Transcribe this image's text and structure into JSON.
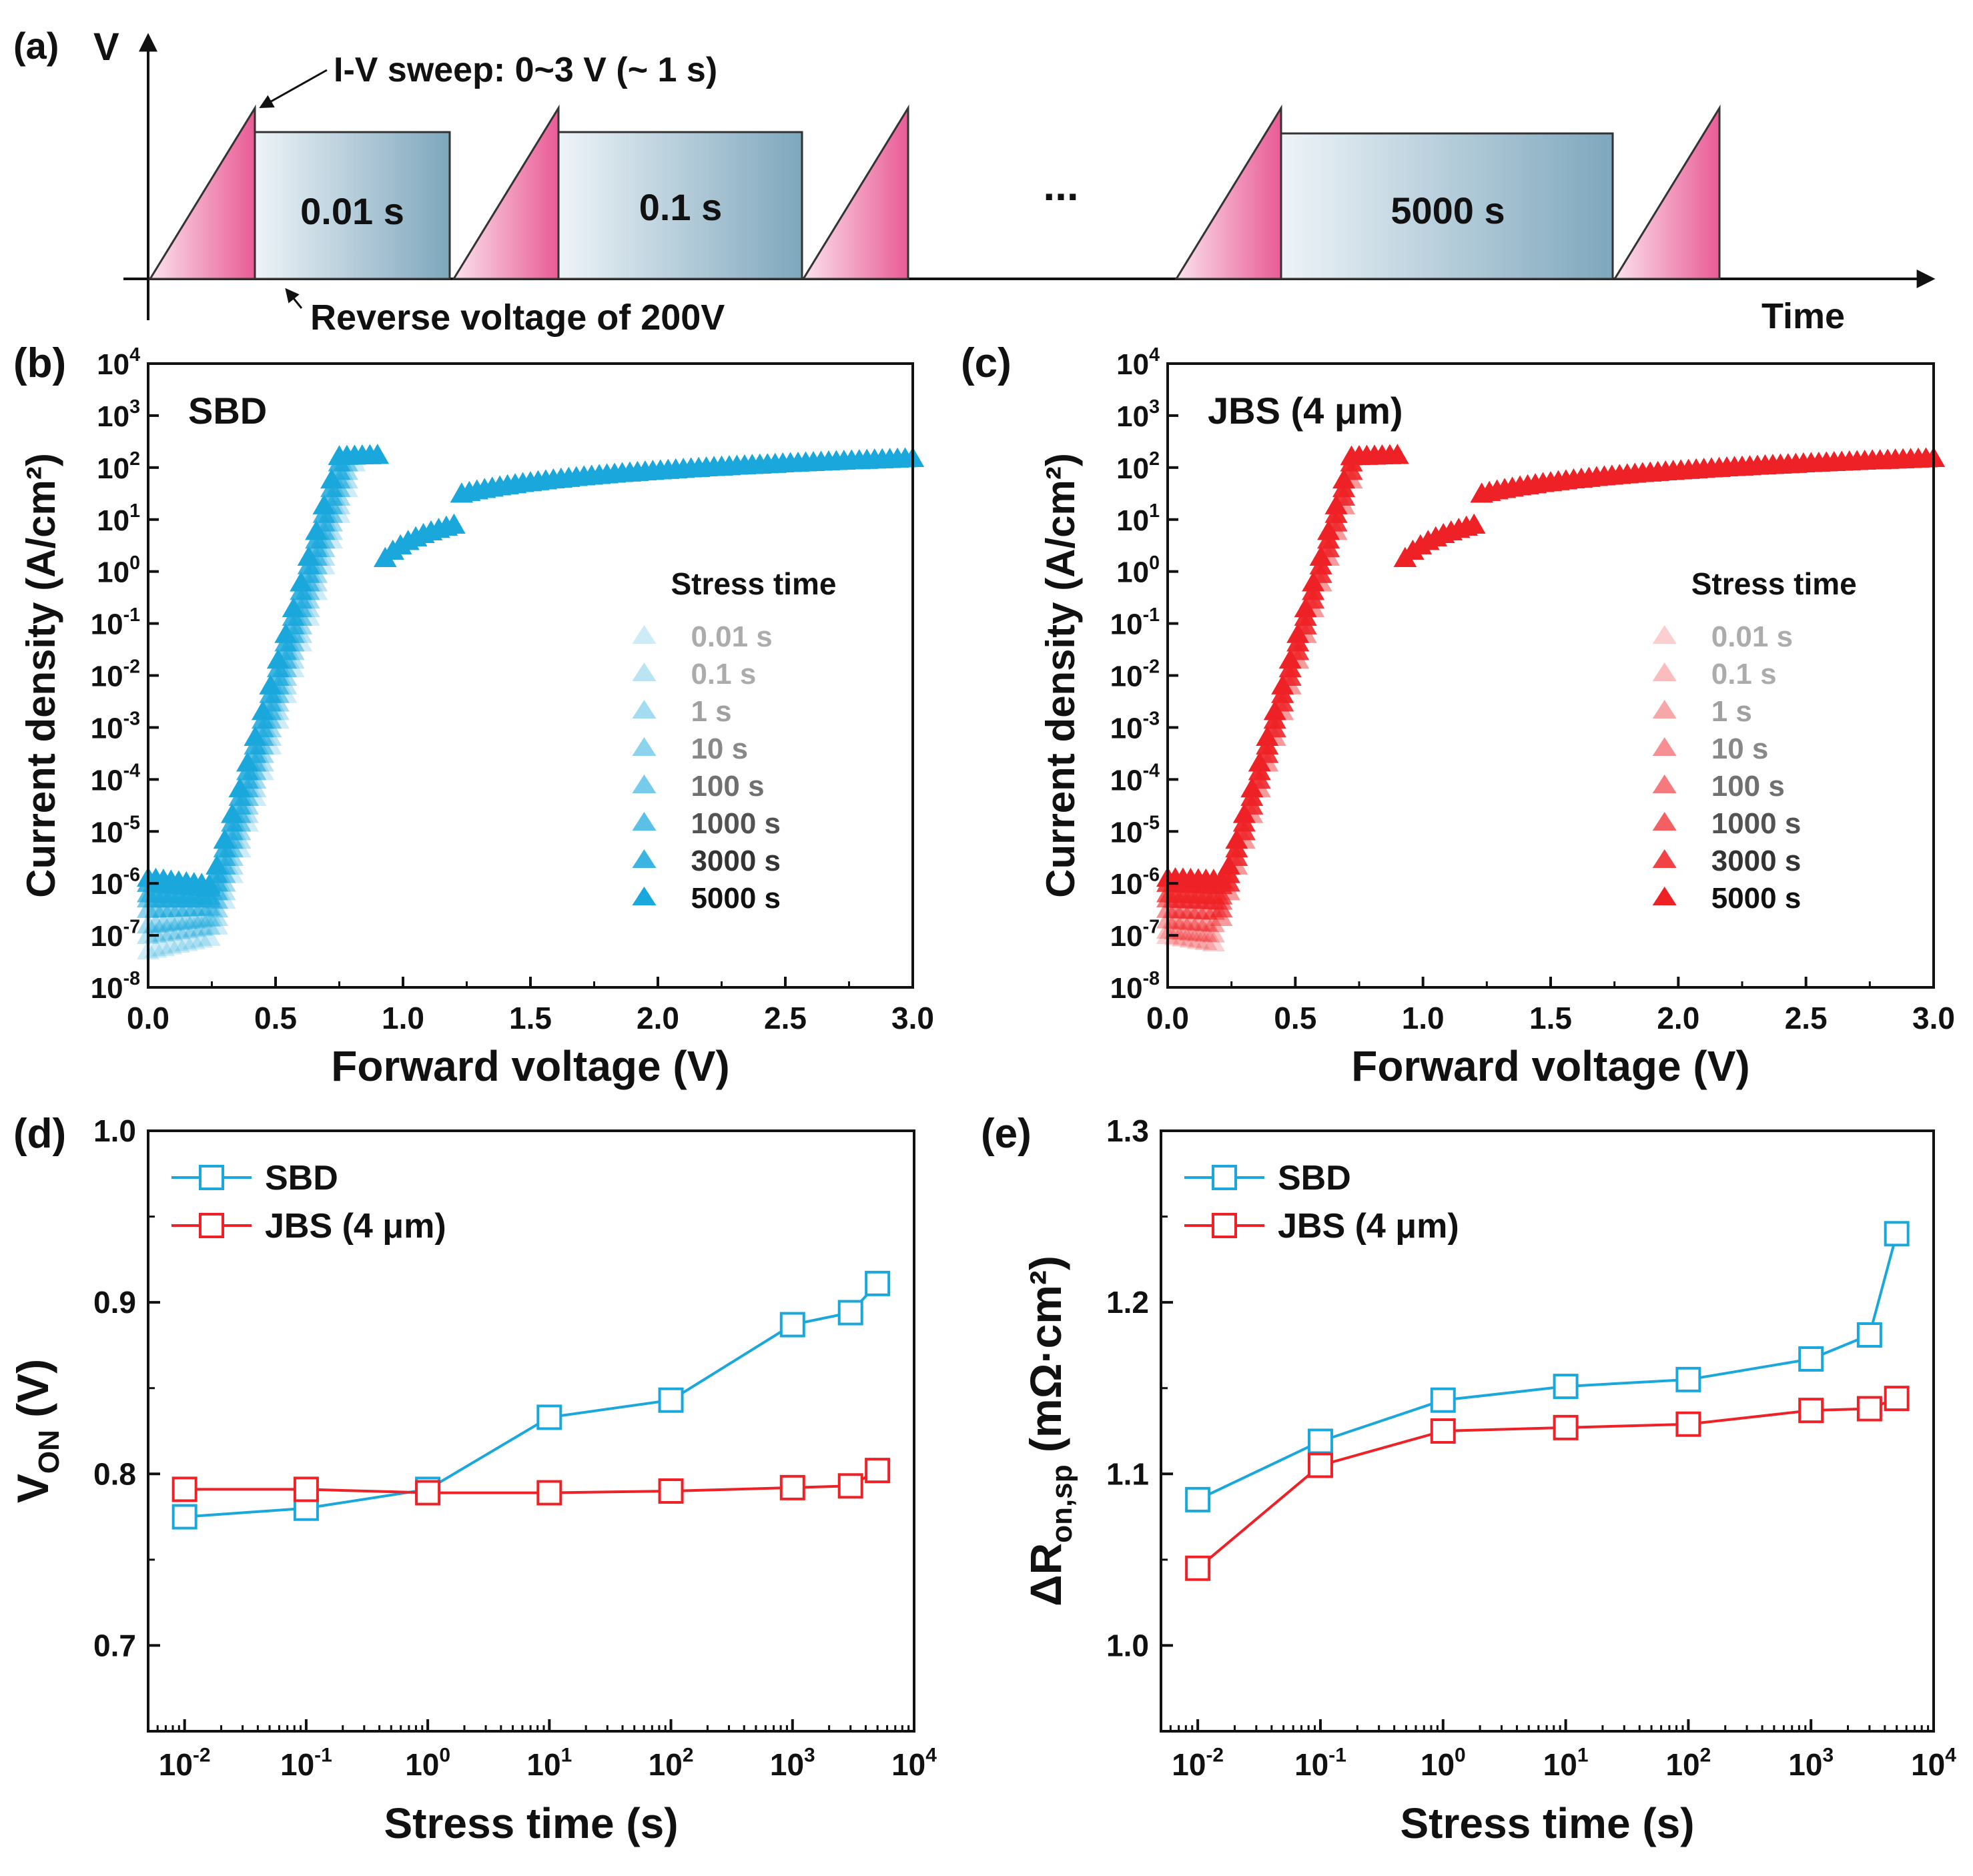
{
  "colors": {
    "sbd": "#1aa7dc",
    "jbs": "#ee2226",
    "axis": "#111111",
    "pulse_fill": "#e95b95",
    "box_fill": "#7ea7bd"
  },
  "panel_a": {
    "label": "(a)",
    "y_axis_label": "V",
    "x_axis_label": "Time",
    "sweep_note": "I-V sweep: 0~3 V (~ 1 s)",
    "reverse_note": "Reverse voltage of 200V",
    "stress_boxes": [
      "0.01 s",
      "0.1 s",
      "5000 s"
    ],
    "ellipsis": "..."
  },
  "chart_data": [
    {
      "id": "b",
      "label": "(b)",
      "type": "scatter",
      "marker": "triangle",
      "title": "SBD",
      "xlabel": "Forward voltage (V)",
      "ylabel": "Current density (A/cm²)",
      "xlim": [
        0,
        3
      ],
      "ylim_log10": [
        -8,
        4
      ],
      "xticks": [
        "0.0",
        "0.5",
        "1.0",
        "1.5",
        "2.0",
        "2.5",
        "3.0"
      ],
      "ytick_exponents": [
        "4",
        "3",
        "2",
        "1",
        "0",
        "-1",
        "-2",
        "-3",
        "-4",
        "-5",
        "-6",
        "-7",
        "-8"
      ],
      "legend_title": "Stress time",
      "legend_position": "center-right",
      "series": [
        {
          "name": "0.01 s",
          "opacity": 0.22,
          "turn_on": 0.7,
          "floor": [
            -7.3,
            -6.7
          ],
          "floor_end": 0.55
        },
        {
          "name": "0.1 s",
          "opacity": 0.3,
          "turn_on": 0.69,
          "floor": [
            -7.0,
            -6.6
          ],
          "floor_end": 0.55
        },
        {
          "name": "1 s",
          "opacity": 0.4,
          "turn_on": 0.68,
          "floor": [
            -6.8,
            -6.5
          ],
          "floor_end": 0.55
        },
        {
          "name": "10 s",
          "opacity": 0.5,
          "turn_on": 0.67,
          "floor": [
            -6.5,
            -6.4
          ],
          "floor_end": 0.55
        },
        {
          "name": "100 s",
          "opacity": 0.6,
          "turn_on": 0.66,
          "floor": [
            -6.3,
            -6.3
          ],
          "floor_end": 0.55
        },
        {
          "name": "1000 s",
          "opacity": 0.72,
          "turn_on": 0.65,
          "floor": [
            -6.2,
            -6.3
          ],
          "floor_end": 0.55
        },
        {
          "name": "3000 s",
          "opacity": 0.85,
          "turn_on": 0.64,
          "floor": [
            -6.0,
            -6.2
          ],
          "floor_end": 0.55
        },
        {
          "name": "5000 s",
          "opacity": 1.0,
          "turn_on": 0.63,
          "floor": [
            -5.9,
            -6.2
          ],
          "floor_end": 0.55
        }
      ]
    },
    {
      "id": "c",
      "label": "(c)",
      "type": "scatter",
      "marker": "triangle",
      "title": "JBS (4 μm)",
      "xlabel": "Forward voltage (V)",
      "ylabel": "Current density (A/cm²)",
      "xlim": [
        0,
        3
      ],
      "ylim_log10": [
        -8,
        4
      ],
      "xticks": [
        "0.0",
        "0.5",
        "1.0",
        "1.5",
        "2.0",
        "2.5",
        "3.0"
      ],
      "ytick_exponents": [
        "4",
        "3",
        "2",
        "1",
        "0",
        "-1",
        "-2",
        "-3",
        "-4",
        "-5",
        "-6",
        "-7",
        "-8"
      ],
      "legend_title": "Stress time",
      "legend_position": "center-right",
      "series": [
        {
          "name": "0.01 s",
          "opacity": 0.22,
          "turn_on": 0.63,
          "floor": [
            -7.0,
            -7.4
          ],
          "floor_end": 0.5
        },
        {
          "name": "0.1 s",
          "opacity": 0.3,
          "turn_on": 0.63,
          "floor": [
            -6.9,
            -7.1
          ],
          "floor_end": 0.5
        },
        {
          "name": "1 s",
          "opacity": 0.4,
          "turn_on": 0.62,
          "floor": [
            -6.7,
            -6.9
          ],
          "floor_end": 0.5
        },
        {
          "name": "10 s",
          "opacity": 0.5,
          "turn_on": 0.62,
          "floor": [
            -6.5,
            -6.6
          ],
          "floor_end": 0.5
        },
        {
          "name": "100 s",
          "opacity": 0.6,
          "turn_on": 0.62,
          "floor": [
            -6.3,
            -6.4
          ],
          "floor_end": 0.5
        },
        {
          "name": "1000 s",
          "opacity": 0.72,
          "turn_on": 0.61,
          "floor": [
            -6.2,
            -6.3
          ],
          "floor_end": 0.5
        },
        {
          "name": "3000 s",
          "opacity": 0.85,
          "turn_on": 0.61,
          "floor": [
            -6.0,
            -6.1
          ],
          "floor_end": 0.5
        },
        {
          "name": "5000 s",
          "opacity": 1.0,
          "turn_on": 0.6,
          "floor": [
            -5.9,
            -6.0
          ],
          "floor_end": 0.5
        }
      ]
    },
    {
      "id": "d",
      "label": "(d)",
      "type": "line",
      "marker": "square",
      "xlabel": "Stress time (s)",
      "ylabel_main": "V",
      "ylabel_sub": "ON",
      "ylabel_suffix": " (V)",
      "xscale": "log",
      "xlim_log10": [
        -2.3,
        4
      ],
      "xtick_exponents": [
        "-2",
        "-1",
        "0",
        "1",
        "2",
        "3",
        "4"
      ],
      "ylim": [
        0.65,
        1.0
      ],
      "yticks": [
        "0.7",
        "0.8",
        "0.9",
        "1.0"
      ],
      "x": [
        0.01,
        0.1,
        1,
        10,
        100,
        1000,
        3000,
        5000
      ],
      "series": [
        {
          "name": "SBD",
          "color_key": "sbd",
          "values": [
            0.775,
            0.78,
            0.791,
            0.833,
            0.843,
            0.887,
            0.894,
            0.911
          ]
        },
        {
          "name": "JBS (4 μm)",
          "color_key": "jbs",
          "values": [
            0.791,
            0.791,
            0.789,
            0.789,
            0.79,
            0.792,
            0.793,
            0.802
          ]
        }
      ],
      "legend_position": "top-left"
    },
    {
      "id": "e",
      "label": "(e)",
      "type": "line",
      "marker": "square",
      "xlabel": "Stress time (s)",
      "ylabel_main": "ΔR",
      "ylabel_sub": "on,sp",
      "ylabel_suffix": " (mΩ·cm²)",
      "xscale": "log",
      "xlim_log10": [
        -2.3,
        4
      ],
      "xtick_exponents": [
        "-2",
        "-1",
        "0",
        "1",
        "2",
        "3",
        "4"
      ],
      "ylim": [
        0.95,
        1.3
      ],
      "yticks": [
        "1.0",
        "1.1",
        "1.2",
        "1.3"
      ],
      "x": [
        0.01,
        0.1,
        1,
        10,
        100,
        1000,
        3000,
        5000
      ],
      "series": [
        {
          "name": "SBD",
          "color_key": "sbd",
          "values": [
            1.085,
            1.119,
            1.143,
            1.151,
            1.155,
            1.167,
            1.181,
            1.24
          ]
        },
        {
          "name": "JBS (4 μm)",
          "color_key": "jbs",
          "values": [
            1.045,
            1.105,
            1.125,
            1.127,
            1.129,
            1.137,
            1.138,
            1.144
          ]
        }
      ],
      "legend_position": "top-left"
    }
  ]
}
